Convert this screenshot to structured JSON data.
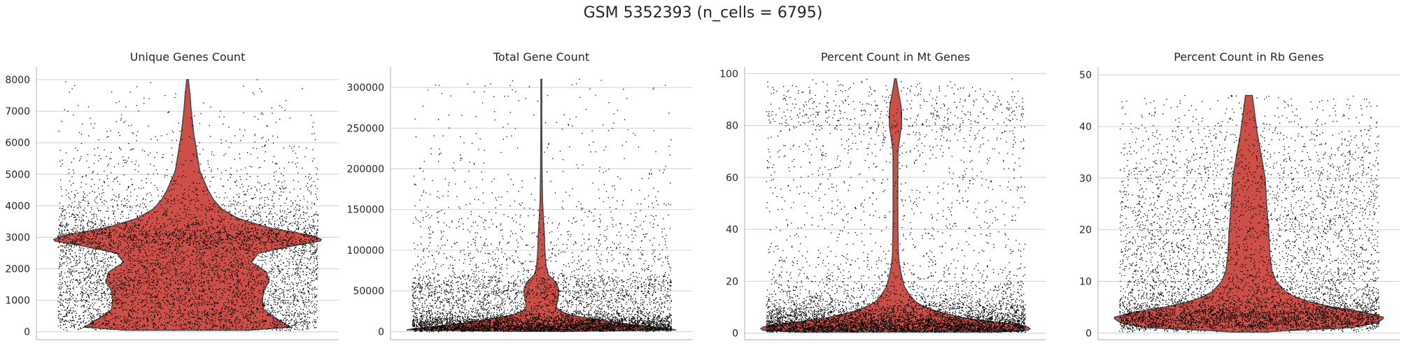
{
  "figure": {
    "title": "GSM 5352393 (n_cells = 6795)"
  },
  "style": {
    "violin_fill": "#cd4f48",
    "violin_edge": "#4a4a4a",
    "point_color": "#000000",
    "grid_color": "#d0d0d0",
    "axis_color": "#bdbdbd"
  },
  "chart_data": [
    {
      "type": "violin",
      "title": "Unique Genes Count",
      "xlabel": "",
      "ylabel": "",
      "ylim": [
        -250,
        8400
      ],
      "yticks": [
        0,
        1000,
        2000,
        3000,
        4000,
        5000,
        6000,
        7000,
        8000
      ],
      "ytick_labels": [
        "0",
        "1000",
        "2000",
        "3000",
        "4000",
        "5000",
        "6000",
        "7000",
        "8000"
      ],
      "grid": true,
      "n_points": 6795,
      "data_range": [
        50,
        8000
      ],
      "density": [
        [
          0,
          0.3
        ],
        [
          150,
          0.76
        ],
        [
          400,
          0.66
        ],
        [
          700,
          0.56
        ],
        [
          1000,
          0.55
        ],
        [
          1300,
          0.56
        ],
        [
          1600,
          0.6
        ],
        [
          1900,
          0.58
        ],
        [
          2200,
          0.47
        ],
        [
          2500,
          0.52
        ],
        [
          2750,
          0.8
        ],
        [
          2900,
          1.0
        ],
        [
          3050,
          0.92
        ],
        [
          3300,
          0.6
        ],
        [
          3600,
          0.37
        ],
        [
          3900,
          0.25
        ],
        [
          4200,
          0.19
        ],
        [
          4500,
          0.15
        ],
        [
          4800,
          0.12
        ],
        [
          5100,
          0.09
        ],
        [
          5500,
          0.075
        ],
        [
          5900,
          0.06
        ],
        [
          6300,
          0.045
        ],
        [
          6700,
          0.035
        ],
        [
          7100,
          0.025
        ],
        [
          7500,
          0.018
        ],
        [
          8000,
          0.006
        ]
      ]
    },
    {
      "type": "violin",
      "title": "Total Gene Count",
      "xlabel": "",
      "ylabel": "",
      "ylim": [
        -10000,
        325000
      ],
      "yticks": [
        0,
        50000,
        100000,
        150000,
        200000,
        250000,
        300000
      ],
      "ytick_labels": [
        "0",
        "50000",
        "100000",
        "150000",
        "200000",
        "250000",
        "300000"
      ],
      "grid": true,
      "n_points": 6795,
      "data_range": [
        200,
        310000
      ],
      "density": [
        [
          0,
          0.05
        ],
        [
          2000,
          1.0
        ],
        [
          5000,
          0.86
        ],
        [
          8000,
          0.68
        ],
        [
          12000,
          0.5
        ],
        [
          16000,
          0.36
        ],
        [
          20000,
          0.22
        ],
        [
          25000,
          0.14
        ],
        [
          30000,
          0.11
        ],
        [
          40000,
          0.12
        ],
        [
          50000,
          0.13
        ],
        [
          60000,
          0.11
        ],
        [
          70000,
          0.05
        ],
        [
          80000,
          0.035
        ],
        [
          90000,
          0.03
        ],
        [
          100000,
          0.026
        ],
        [
          120000,
          0.022
        ],
        [
          140000,
          0.015
        ],
        [
          160000,
          0.009
        ],
        [
          180000,
          0.007
        ],
        [
          200000,
          0.005
        ],
        [
          230000,
          0.004
        ],
        [
          260000,
          0.003
        ],
        [
          290000,
          0.003
        ],
        [
          310000,
          0.003
        ]
      ]
    },
    {
      "type": "violin",
      "title": "Percent Count in Mt Genes",
      "xlabel": "",
      "ylabel": "",
      "ylim": [
        -2.5,
        102.5
      ],
      "yticks": [
        0,
        20,
        40,
        60,
        80,
        100
      ],
      "ytick_labels": [
        "0",
        "20",
        "40",
        "60",
        "80",
        "100"
      ],
      "grid": true,
      "n_points": 6795,
      "data_range": [
        0.5,
        98
      ],
      "density": [
        [
          0,
          0.5
        ],
        [
          1,
          0.97
        ],
        [
          2,
          1.0
        ],
        [
          3,
          0.93
        ],
        [
          4,
          0.78
        ],
        [
          5,
          0.62
        ],
        [
          6,
          0.5
        ],
        [
          8,
          0.33
        ],
        [
          10,
          0.22
        ],
        [
          12,
          0.15
        ],
        [
          15,
          0.1
        ],
        [
          18,
          0.065
        ],
        [
          22,
          0.045
        ],
        [
          26,
          0.03
        ],
        [
          30,
          0.022
        ],
        [
          40,
          0.018
        ],
        [
          50,
          0.017
        ],
        [
          60,
          0.017
        ],
        [
          70,
          0.018
        ],
        [
          75,
          0.03
        ],
        [
          80,
          0.045
        ],
        [
          85,
          0.045
        ],
        [
          88,
          0.04
        ],
        [
          92,
          0.025
        ],
        [
          95,
          0.015
        ],
        [
          98,
          0.005
        ]
      ]
    },
    {
      "type": "violin",
      "title": "Percent Count in Rb Genes",
      "xlabel": "",
      "ylabel": "",
      "ylim": [
        -1.3,
        51.5
      ],
      "yticks": [
        0,
        10,
        20,
        30,
        40,
        50
      ],
      "ytick_labels": [
        "0",
        "10",
        "20",
        "30",
        "40",
        "50"
      ],
      "grid": true,
      "n_points": 6795,
      "data_range": [
        0.2,
        46
      ],
      "density": [
        [
          0,
          0.02
        ],
        [
          0.5,
          0.3
        ],
        [
          1,
          0.75
        ],
        [
          2,
          0.95
        ],
        [
          3,
          1.0
        ],
        [
          4,
          0.85
        ],
        [
          5,
          0.62
        ],
        [
          6,
          0.45
        ],
        [
          7,
          0.34
        ],
        [
          8,
          0.27
        ],
        [
          10,
          0.2
        ],
        [
          12,
          0.17
        ],
        [
          15,
          0.155
        ],
        [
          20,
          0.145
        ],
        [
          25,
          0.13
        ],
        [
          30,
          0.12
        ],
        [
          33,
          0.1
        ],
        [
          36,
          0.08
        ],
        [
          39,
          0.06
        ],
        [
          42,
          0.045
        ],
        [
          45,
          0.03
        ],
        [
          48,
          0.015
        ],
        [
          50,
          0.003
        ]
      ]
    }
  ]
}
